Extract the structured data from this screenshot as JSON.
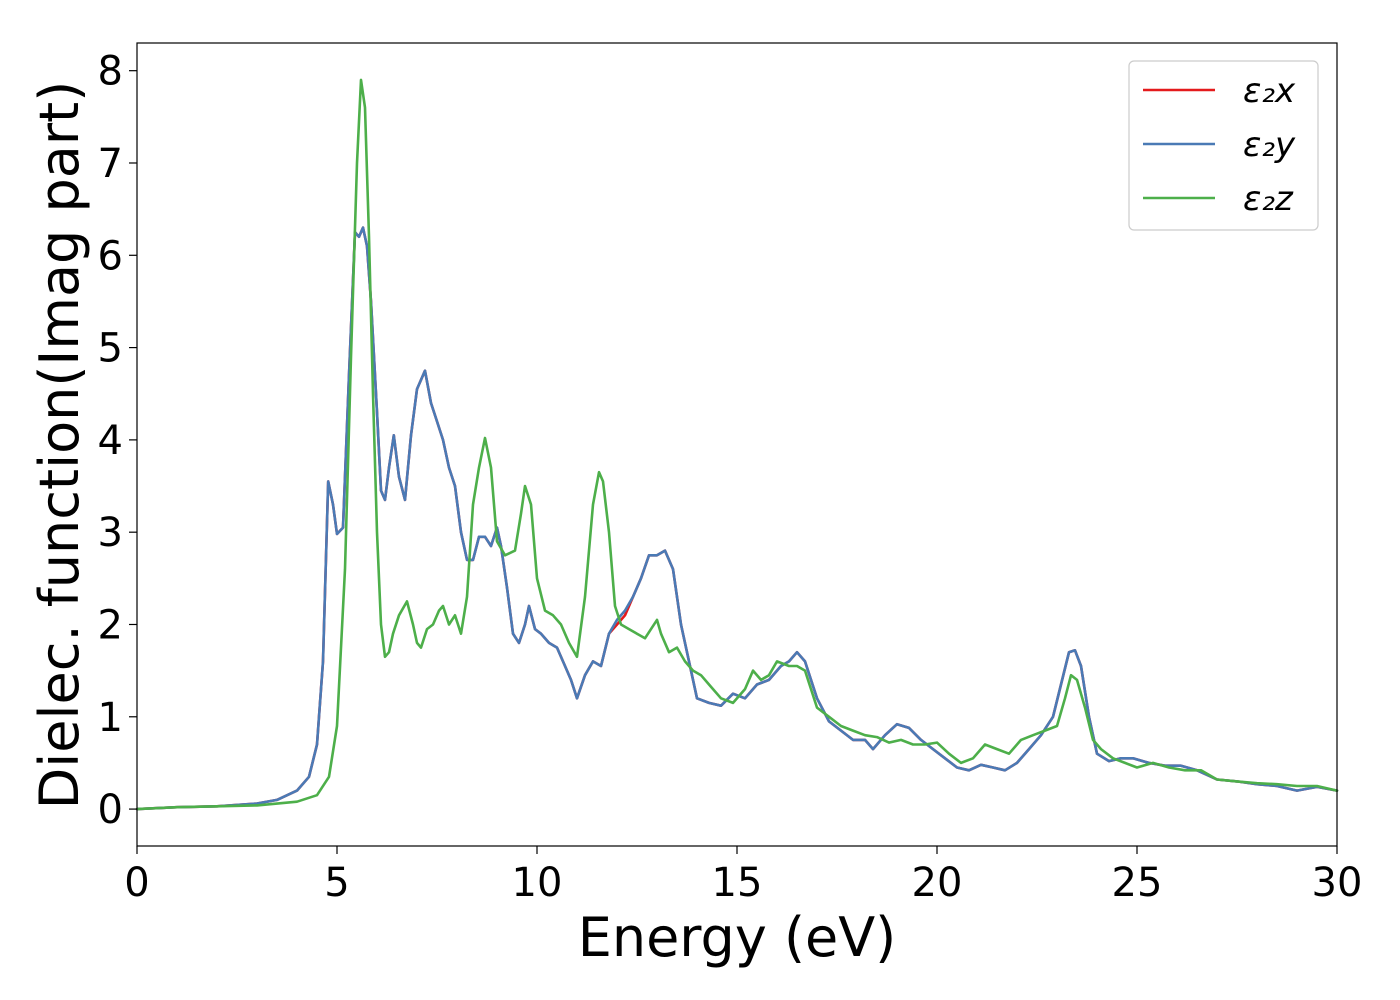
{
  "chart_data": {
    "type": "line",
    "title": "",
    "xlabel": "Energy (eV)",
    "ylabel": "Dielec. function(Imag part)",
    "xlim": [
      0,
      30
    ],
    "ylim": [
      -0.4,
      8.3
    ],
    "xticks": [
      "0",
      "5",
      "10",
      "15",
      "20",
      "25",
      "30"
    ],
    "yticks": [
      "0",
      "1",
      "2",
      "3",
      "4",
      "5",
      "6",
      "7",
      "8"
    ],
    "grid": false,
    "legend_position": "top-right",
    "series": [
      {
        "name": "ε₂x",
        "color": "#e41a1c",
        "x": [
          0,
          1,
          2,
          3,
          3.5,
          4,
          4.3,
          4.5,
          4.65,
          4.78,
          4.9,
          5.0,
          5.15,
          5.3,
          5.45,
          5.55,
          5.65,
          5.75,
          5.85,
          6.0,
          6.1,
          6.2,
          6.3,
          6.42,
          6.55,
          6.7,
          6.85,
          7.0,
          7.2,
          7.35,
          7.5,
          7.65,
          7.8,
          7.95,
          8.1,
          8.25,
          8.4,
          8.55,
          8.7,
          8.85,
          9.0,
          9.1,
          9.25,
          9.4,
          9.55,
          9.7,
          9.8,
          9.95,
          10.1,
          10.3,
          10.5,
          10.7,
          10.85,
          11.0,
          11.2,
          11.4,
          11.6,
          11.8,
          12.0,
          12.2,
          12.4,
          12.6,
          12.8,
          13.0,
          13.2,
          13.4,
          13.6,
          13.8,
          14.0,
          14.3,
          14.6,
          14.9,
          15.2,
          15.5,
          15.8,
          16.1,
          16.3,
          16.5,
          16.7,
          17.0,
          17.3,
          17.6,
          17.9,
          18.2,
          18.4,
          18.7,
          19.0,
          19.3,
          19.6,
          19.9,
          20.2,
          20.5,
          20.8,
          21.1,
          21.4,
          21.7,
          22.0,
          22.3,
          22.6,
          22.9,
          23.1,
          23.3,
          23.45,
          23.6,
          23.8,
          24.0,
          24.3,
          24.6,
          24.9,
          25.3,
          25.7,
          26.1,
          26.5,
          27.0,
          27.5,
          28.0,
          28.5,
          29.0,
          29.5,
          30.0
        ],
        "y": [
          0.0,
          0.02,
          0.03,
          0.06,
          0.1,
          0.2,
          0.35,
          0.7,
          1.6,
          3.55,
          3.3,
          2.98,
          3.05,
          4.7,
          6.25,
          6.2,
          6.3,
          6.1,
          5.5,
          4.3,
          3.45,
          3.35,
          3.7,
          4.05,
          3.6,
          3.35,
          4.05,
          4.55,
          4.75,
          4.4,
          4.2,
          4.0,
          3.7,
          3.5,
          3.0,
          2.7,
          2.7,
          2.95,
          2.95,
          2.85,
          3.05,
          2.85,
          2.4,
          1.9,
          1.8,
          2.0,
          2.2,
          1.95,
          1.9,
          1.8,
          1.75,
          1.55,
          1.4,
          1.2,
          1.45,
          1.6,
          1.55,
          1.9,
          2.0,
          2.1,
          2.3,
          2.5,
          2.75,
          2.75,
          2.8,
          2.6,
          2.0,
          1.6,
          1.2,
          1.15,
          1.12,
          1.25,
          1.2,
          1.35,
          1.4,
          1.55,
          1.6,
          1.7,
          1.6,
          1.2,
          0.95,
          0.85,
          0.75,
          0.75,
          0.65,
          0.8,
          0.92,
          0.88,
          0.75,
          0.65,
          0.55,
          0.45,
          0.42,
          0.48,
          0.45,
          0.42,
          0.5,
          0.65,
          0.8,
          1.0,
          1.35,
          1.7,
          1.72,
          1.55,
          1.0,
          0.6,
          0.52,
          0.55,
          0.55,
          0.5,
          0.47,
          0.47,
          0.42,
          0.32,
          0.3,
          0.27,
          0.25,
          0.2,
          0.24,
          0.2
        ]
      },
      {
        "name": "ε₂y",
        "color": "#4a7ab5",
        "x": [
          0,
          1,
          2,
          3,
          3.5,
          4,
          4.3,
          4.5,
          4.65,
          4.78,
          4.9,
          5.0,
          5.15,
          5.3,
          5.45,
          5.55,
          5.65,
          5.75,
          5.85,
          6.0,
          6.1,
          6.2,
          6.3,
          6.42,
          6.55,
          6.7,
          6.85,
          7.0,
          7.2,
          7.35,
          7.5,
          7.65,
          7.8,
          7.95,
          8.1,
          8.25,
          8.4,
          8.55,
          8.7,
          8.85,
          9.0,
          9.1,
          9.25,
          9.4,
          9.55,
          9.7,
          9.8,
          9.95,
          10.1,
          10.3,
          10.5,
          10.7,
          10.85,
          11.0,
          11.2,
          11.4,
          11.6,
          11.8,
          12.0,
          12.2,
          12.4,
          12.6,
          12.8,
          13.0,
          13.2,
          13.4,
          13.6,
          13.8,
          14.0,
          14.3,
          14.6,
          14.9,
          15.2,
          15.5,
          15.8,
          16.1,
          16.3,
          16.5,
          16.7,
          17.0,
          17.3,
          17.6,
          17.9,
          18.2,
          18.4,
          18.7,
          19.0,
          19.3,
          19.6,
          19.9,
          20.2,
          20.5,
          20.8,
          21.1,
          21.4,
          21.7,
          22.0,
          22.3,
          22.6,
          22.9,
          23.1,
          23.3,
          23.45,
          23.6,
          23.8,
          24.0,
          24.3,
          24.6,
          24.9,
          25.3,
          25.7,
          26.1,
          26.5,
          27.0,
          27.5,
          28.0,
          28.5,
          29.0,
          29.5,
          30.0
        ],
        "y": [
          0.0,
          0.02,
          0.03,
          0.06,
          0.1,
          0.2,
          0.35,
          0.7,
          1.6,
          3.55,
          3.3,
          2.98,
          3.05,
          4.7,
          6.25,
          6.2,
          6.3,
          6.1,
          5.5,
          4.3,
          3.45,
          3.35,
          3.7,
          4.05,
          3.6,
          3.35,
          4.05,
          4.55,
          4.75,
          4.4,
          4.2,
          4.0,
          3.7,
          3.5,
          3.0,
          2.7,
          2.7,
          2.95,
          2.95,
          2.85,
          3.05,
          2.85,
          2.4,
          1.9,
          1.8,
          2.0,
          2.2,
          1.95,
          1.9,
          1.8,
          1.75,
          1.55,
          1.4,
          1.2,
          1.45,
          1.6,
          1.55,
          1.9,
          2.05,
          2.15,
          2.3,
          2.5,
          2.75,
          2.75,
          2.8,
          2.6,
          2.0,
          1.6,
          1.2,
          1.15,
          1.12,
          1.25,
          1.2,
          1.35,
          1.4,
          1.55,
          1.6,
          1.7,
          1.6,
          1.2,
          0.95,
          0.85,
          0.75,
          0.75,
          0.65,
          0.8,
          0.92,
          0.88,
          0.75,
          0.65,
          0.55,
          0.45,
          0.42,
          0.48,
          0.45,
          0.42,
          0.5,
          0.65,
          0.8,
          1.0,
          1.35,
          1.7,
          1.72,
          1.55,
          1.0,
          0.6,
          0.52,
          0.55,
          0.55,
          0.5,
          0.47,
          0.47,
          0.42,
          0.32,
          0.3,
          0.27,
          0.25,
          0.2,
          0.24,
          0.2
        ]
      },
      {
        "name": "ε₂z",
        "color": "#4daf4a",
        "x": [
          0,
          1,
          2,
          3,
          4,
          4.5,
          4.8,
          5.0,
          5.2,
          5.35,
          5.5,
          5.6,
          5.7,
          5.8,
          5.9,
          6.0,
          6.1,
          6.2,
          6.3,
          6.4,
          6.55,
          6.75,
          6.9,
          7.0,
          7.1,
          7.25,
          7.4,
          7.55,
          7.65,
          7.8,
          7.95,
          8.1,
          8.25,
          8.4,
          8.55,
          8.7,
          8.85,
          9.0,
          9.2,
          9.45,
          9.6,
          9.7,
          9.85,
          10.0,
          10.2,
          10.4,
          10.6,
          10.8,
          11.0,
          11.2,
          11.4,
          11.55,
          11.65,
          11.8,
          11.95,
          12.1,
          12.3,
          12.5,
          12.7,
          12.85,
          13.0,
          13.1,
          13.3,
          13.5,
          13.7,
          13.9,
          14.1,
          14.3,
          14.6,
          14.9,
          15.2,
          15.4,
          15.6,
          15.8,
          16.0,
          16.3,
          16.5,
          16.7,
          17.0,
          17.3,
          17.6,
          17.9,
          18.2,
          18.5,
          18.8,
          19.1,
          19.4,
          19.7,
          20.0,
          20.3,
          20.6,
          20.9,
          21.2,
          21.5,
          21.8,
          22.1,
          22.4,
          22.7,
          23.0,
          23.2,
          23.35,
          23.5,
          23.7,
          23.9,
          24.1,
          24.4,
          24.7,
          25.0,
          25.4,
          25.8,
          26.2,
          26.6,
          27.0,
          27.5,
          28.0,
          28.5,
          29.0,
          29.5,
          30.0
        ],
        "y": [
          0.0,
          0.02,
          0.03,
          0.04,
          0.08,
          0.15,
          0.35,
          0.9,
          2.6,
          4.9,
          7.0,
          7.9,
          7.6,
          6.2,
          4.5,
          3.0,
          2.0,
          1.65,
          1.7,
          1.9,
          2.1,
          2.25,
          2.0,
          1.8,
          1.75,
          1.95,
          2.0,
          2.15,
          2.2,
          2.0,
          2.1,
          1.9,
          2.3,
          3.3,
          3.7,
          4.02,
          3.7,
          2.9,
          2.75,
          2.8,
          3.2,
          3.5,
          3.3,
          2.5,
          2.15,
          2.1,
          2.0,
          1.8,
          1.65,
          2.3,
          3.3,
          3.65,
          3.55,
          3.0,
          2.2,
          2.0,
          1.95,
          1.9,
          1.85,
          1.95,
          2.05,
          1.9,
          1.7,
          1.75,
          1.6,
          1.5,
          1.45,
          1.35,
          1.2,
          1.15,
          1.3,
          1.5,
          1.4,
          1.45,
          1.6,
          1.55,
          1.55,
          1.5,
          1.1,
          1.0,
          0.9,
          0.85,
          0.8,
          0.78,
          0.72,
          0.75,
          0.7,
          0.7,
          0.72,
          0.6,
          0.5,
          0.55,
          0.7,
          0.65,
          0.6,
          0.75,
          0.8,
          0.85,
          0.9,
          1.2,
          1.45,
          1.4,
          1.1,
          0.75,
          0.65,
          0.55,
          0.5,
          0.45,
          0.5,
          0.45,
          0.42,
          0.42,
          0.32,
          0.3,
          0.28,
          0.27,
          0.25,
          0.25,
          0.2
        ]
      }
    ]
  }
}
